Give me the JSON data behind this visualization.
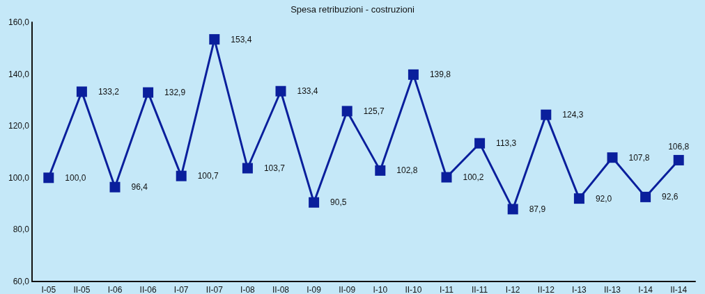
{
  "chart_data": {
    "type": "line",
    "title": "Spesa retribuzioni - costruzioni",
    "categories": [
      "I-05",
      "II-05",
      "I-06",
      "II-06",
      "I-07",
      "II-07",
      "I-08",
      "II-08",
      "I-09",
      "II-09",
      "I-10",
      "II-10",
      "I-11",
      "II-11",
      "I-12",
      "II-12",
      "I-13",
      "II-13",
      "I-14",
      "II-14"
    ],
    "series": [
      {
        "color": "#0a1f9c",
        "values": [
          100.0,
          133.2,
          96.4,
          132.9,
          100.7,
          153.4,
          103.7,
          133.4,
          90.5,
          125.7,
          102.8,
          139.8,
          100.2,
          113.3,
          87.9,
          124.3,
          92.0,
          107.8,
          92.6,
          106.8
        ],
        "value_labels": [
          "100,0",
          "133,2",
          "96,4",
          "132,9",
          "100,7",
          "153,4",
          "103,7",
          "133,4",
          "90,5",
          "125,7",
          "102,8",
          "139,8",
          "100,2",
          "113,3",
          "87,9",
          "124,3",
          "92,0",
          "107,8",
          "92,6",
          "106,8"
        ]
      }
    ],
    "ylim": [
      60,
      160
    ],
    "yticks": [
      {
        "value": 60,
        "label": "60,0"
      },
      {
        "value": 80,
        "label": "80,0"
      },
      {
        "value": 100,
        "label": "100,0"
      },
      {
        "value": 120,
        "label": "120,0"
      },
      {
        "value": 140,
        "label": "140,0"
      },
      {
        "value": 160,
        "label": "160,0"
      }
    ],
    "grid": false,
    "marker": "square",
    "line_style": "solid"
  }
}
